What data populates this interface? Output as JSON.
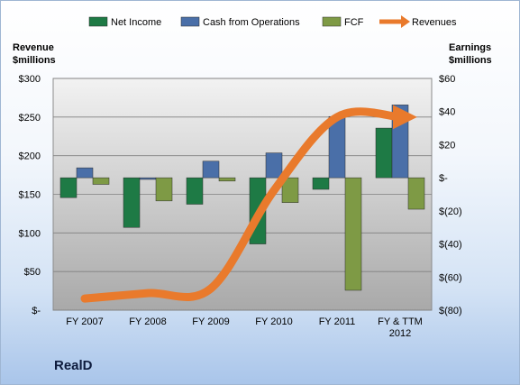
{
  "chart_data": {
    "type": "bar",
    "categories": [
      "FY 2007",
      "FY 2008",
      "FY 2009",
      "FY 2010",
      "FY 2011",
      "FY & TTM 2012"
    ],
    "series": [
      {
        "name": "Net Income",
        "axis": "right",
        "color": "#1e7a45",
        "values": [
          -12,
          -30,
          -16,
          -40,
          -7,
          30
        ]
      },
      {
        "name": "Cash from Operations",
        "axis": "right",
        "color": "#4a6fa8",
        "values": [
          6,
          -1,
          10,
          15,
          37,
          44
        ]
      },
      {
        "name": "FCF",
        "axis": "right",
        "color": "#7e9a45",
        "values": [
          -4,
          -14,
          -2,
          -15,
          -68,
          -19
        ]
      },
      {
        "name": "Revenues",
        "axis": "left",
        "type": "line",
        "color": "#e97a2c",
        "values": [
          15,
          22,
          28,
          155,
          250,
          250
        ]
      }
    ],
    "left_axis": {
      "title_lines": [
        "Revenue",
        "$millions"
      ],
      "ticks": [
        "$300",
        "$250",
        "$200",
        "$150",
        "$100",
        "$50",
        "$-"
      ],
      "min": 0,
      "max": 300,
      "step": 50
    },
    "right_axis": {
      "title_lines": [
        "Earnings",
        "$millions"
      ],
      "ticks": [
        "$60",
        "$40",
        "$20",
        "$-",
        "$(20)",
        "$(40)",
        "$(60)",
        "$(80)"
      ],
      "min": -80,
      "max": 60,
      "step": 20
    },
    "category_label_lines": [
      [
        "FY 2007"
      ],
      [
        "FY 2008"
      ],
      [
        "FY 2009"
      ],
      [
        "FY 2010"
      ],
      [
        "FY 2011"
      ],
      [
        "FY & TTM",
        "2012"
      ]
    ],
    "legend_position": "top",
    "grid": true
  },
  "company_name": "RealD"
}
